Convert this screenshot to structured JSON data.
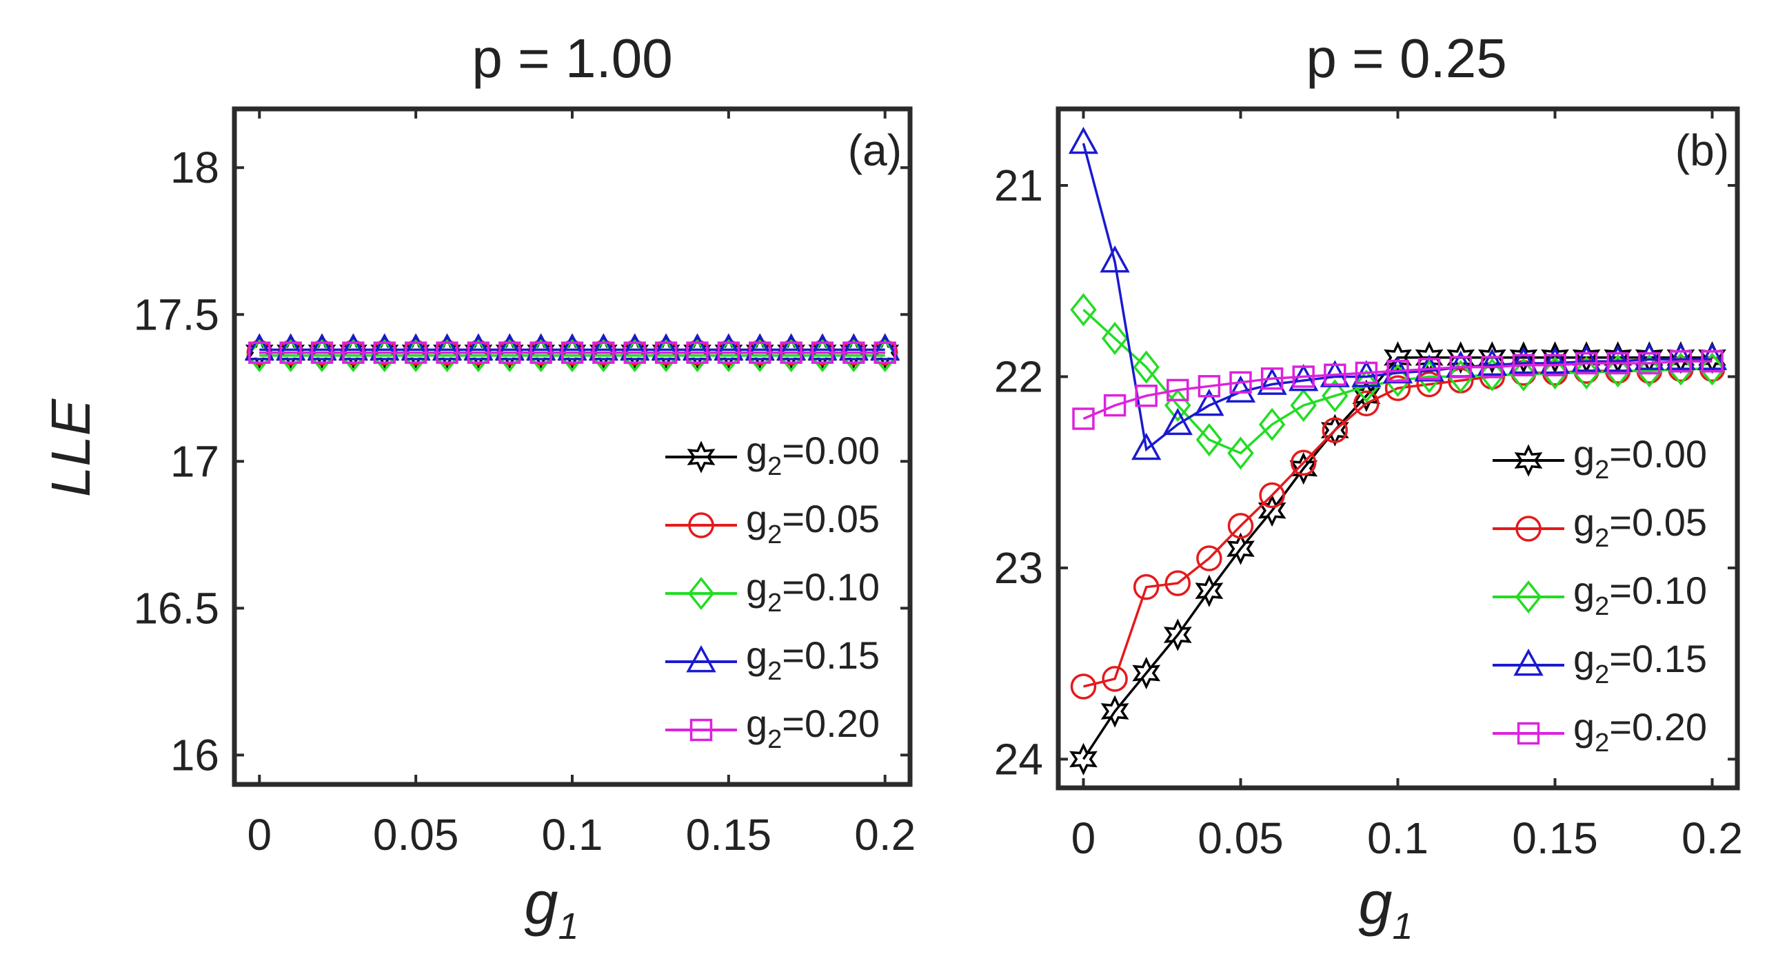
{
  "chart_data": [
    {
      "type": "line",
      "panel_label": "(a)",
      "title": "p = 1.00",
      "xlabel": "g",
      "xlabel_sub": "1",
      "ylabel": "LLE",
      "xlim": [
        -0.008,
        0.208
      ],
      "ylim": [
        15.9,
        18.2
      ],
      "y_reversed": false,
      "xticks": [
        0,
        0.05,
        0.1,
        0.15,
        0.2
      ],
      "xtick_labels": [
        "0",
        "0.05",
        "0.1",
        "0.15",
        "0.2"
      ],
      "yticks": [
        16,
        16.5,
        17,
        17.5,
        18
      ],
      "ytick_labels": [
        "16",
        "16.5",
        "17",
        "17.5",
        "18"
      ],
      "legend_position": "lower-right",
      "x": [
        0,
        0.01,
        0.02,
        0.03,
        0.04,
        0.05,
        0.06,
        0.07,
        0.08,
        0.09,
        0.1,
        0.11,
        0.12,
        0.13,
        0.14,
        0.15,
        0.16,
        0.17,
        0.18,
        0.19,
        0.2
      ],
      "series": [
        {
          "name": "g2=0.00",
          "label_main": "g",
          "label_sub": "2",
          "label_value": "=0.00",
          "color": "#000000",
          "marker": "hexagram",
          "values": [
            17.37,
            17.37,
            17.37,
            17.37,
            17.37,
            17.37,
            17.37,
            17.37,
            17.37,
            17.37,
            17.37,
            17.37,
            17.37,
            17.37,
            17.37,
            17.37,
            17.37,
            17.37,
            17.37,
            17.37,
            17.37
          ]
        },
        {
          "name": "g2=0.05",
          "label_main": "g",
          "label_sub": "2",
          "label_value": "=0.05",
          "color": "#e41a1c",
          "marker": "circle",
          "values": [
            17.37,
            17.37,
            17.37,
            17.37,
            17.37,
            17.37,
            17.37,
            17.37,
            17.37,
            17.37,
            17.37,
            17.37,
            17.37,
            17.37,
            17.37,
            17.37,
            17.37,
            17.37,
            17.37,
            17.37,
            17.37
          ]
        },
        {
          "name": "g2=0.10",
          "label_main": "g",
          "label_sub": "2",
          "label_value": "=0.10",
          "color": "#22dd22",
          "marker": "diamond",
          "values": [
            17.36,
            17.36,
            17.36,
            17.36,
            17.36,
            17.36,
            17.36,
            17.36,
            17.36,
            17.36,
            17.36,
            17.36,
            17.36,
            17.36,
            17.36,
            17.36,
            17.36,
            17.36,
            17.36,
            17.36,
            17.36
          ]
        },
        {
          "name": "g2=0.15",
          "label_main": "g",
          "label_sub": "2",
          "label_value": "=0.15",
          "color": "#1a1ad0",
          "marker": "triangle",
          "values": [
            17.38,
            17.38,
            17.38,
            17.38,
            17.38,
            17.38,
            17.38,
            17.38,
            17.38,
            17.38,
            17.38,
            17.38,
            17.38,
            17.38,
            17.38,
            17.38,
            17.38,
            17.38,
            17.38,
            17.38,
            17.38
          ]
        },
        {
          "name": "g2=0.20",
          "label_main": "g",
          "label_sub": "2",
          "label_value": "=0.20",
          "color": "#dd22dd",
          "marker": "square",
          "values": [
            17.37,
            17.37,
            17.37,
            17.37,
            17.37,
            17.37,
            17.37,
            17.37,
            17.37,
            17.37,
            17.37,
            17.37,
            17.37,
            17.37,
            17.37,
            17.37,
            17.37,
            17.37,
            17.37,
            17.37,
            17.37
          ]
        }
      ]
    },
    {
      "type": "line",
      "panel_label": "(b)",
      "title": "p = 0.25",
      "xlabel": "g",
      "xlabel_sub": "1",
      "ylabel": "",
      "xlim": [
        -0.008,
        0.208
      ],
      "ylim": [
        20.6,
        24.15
      ],
      "y_reversed": true,
      "xticks": [
        0,
        0.05,
        0.1,
        0.15,
        0.2
      ],
      "xtick_labels": [
        "0",
        "0.05",
        "0.1",
        "0.15",
        "0.2"
      ],
      "yticks": [
        21,
        22,
        23,
        24
      ],
      "ytick_labels": [
        "21",
        "22",
        "23",
        "24"
      ],
      "legend_position": "lower-right",
      "x": [
        0,
        0.01,
        0.02,
        0.03,
        0.04,
        0.05,
        0.06,
        0.07,
        0.08,
        0.09,
        0.1,
        0.11,
        0.12,
        0.13,
        0.14,
        0.15,
        0.16,
        0.17,
        0.18,
        0.19,
        0.2
      ],
      "series": [
        {
          "name": "g2=0.00",
          "label_main": "g",
          "label_sub": "2",
          "label_value": "=0.00",
          "color": "#000000",
          "marker": "hexagram",
          "values": [
            24.0,
            23.75,
            23.55,
            23.35,
            23.12,
            22.9,
            22.7,
            22.48,
            22.28,
            22.1,
            21.9,
            21.9,
            21.9,
            21.9,
            21.9,
            21.9,
            21.9,
            21.9,
            21.9,
            21.9,
            21.9
          ]
        },
        {
          "name": "g2=0.05",
          "label_main": "g",
          "label_sub": "2",
          "label_value": "=0.05",
          "color": "#e41a1c",
          "marker": "circle",
          "values": [
            23.62,
            23.58,
            23.1,
            23.08,
            22.95,
            22.78,
            22.62,
            22.45,
            22.28,
            22.14,
            22.06,
            22.04,
            22.02,
            22.0,
            21.98,
            21.98,
            21.97,
            21.97,
            21.97,
            21.96,
            21.96
          ]
        },
        {
          "name": "g2=0.10",
          "label_main": "g",
          "label_sub": "2",
          "label_value": "=0.10",
          "color": "#22dd22",
          "marker": "diamond",
          "values": [
            21.65,
            21.8,
            21.95,
            22.15,
            22.33,
            22.4,
            22.25,
            22.15,
            22.1,
            22.05,
            22.02,
            22.0,
            22.0,
            21.99,
            21.99,
            21.98,
            21.98,
            21.97,
            21.97,
            21.96,
            21.96
          ]
        },
        {
          "name": "g2=0.15",
          "label_main": "g",
          "label_sub": "2",
          "label_value": "=0.15",
          "color": "#1a1ad0",
          "marker": "triangle",
          "values": [
            20.78,
            21.4,
            22.38,
            22.25,
            22.15,
            22.08,
            22.04,
            22.02,
            22.0,
            22.0,
            21.98,
            21.97,
            21.95,
            21.94,
            21.93,
            21.93,
            21.92,
            21.92,
            21.91,
            21.91,
            21.91
          ]
        },
        {
          "name": "g2=0.20",
          "label_main": "g",
          "label_sub": "2",
          "label_value": "=0.20",
          "color": "#dd22dd",
          "marker": "square",
          "values": [
            22.22,
            22.15,
            22.1,
            22.07,
            22.05,
            22.03,
            22.01,
            22.0,
            21.99,
            21.98,
            21.97,
            21.96,
            21.95,
            21.95,
            21.94,
            21.94,
            21.93,
            21.93,
            21.93,
            21.92,
            21.92
          ]
        }
      ]
    }
  ]
}
